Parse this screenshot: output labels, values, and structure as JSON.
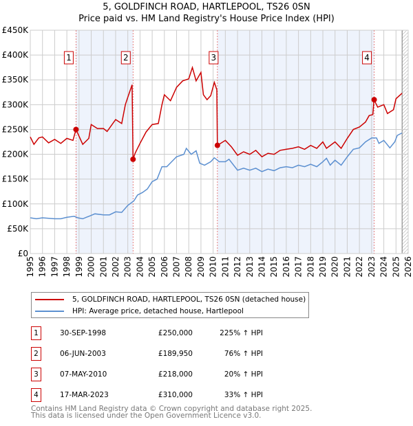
{
  "chart_data": {
    "type": "line",
    "title": "5, GOLDFINCH ROAD, HARTLEPOOL, TS26 0SN",
    "subtitle": "Price paid vs. HM Land Registry's House Price Index (HPI)",
    "xlim": [
      1995,
      2026
    ],
    "ylim": [
      0,
      450000
    ],
    "y_ticks": [
      {
        "v": 0,
        "l": "£0"
      },
      {
        "v": 50000,
        "l": "£50K"
      },
      {
        "v": 100000,
        "l": "£100K"
      },
      {
        "v": 150000,
        "l": "£150K"
      },
      {
        "v": 200000,
        "l": "£200K"
      },
      {
        "v": 250000,
        "l": "£250K"
      },
      {
        "v": 300000,
        "l": "£300K"
      },
      {
        "v": 350000,
        "l": "£350K"
      },
      {
        "v": 400000,
        "l": "£400K"
      },
      {
        "v": 450000,
        "l": "£450K"
      }
    ],
    "x_ticks": [
      "1995",
      "1996",
      "1997",
      "1998",
      "1999",
      "2000",
      "2001",
      "2002",
      "2003",
      "2004",
      "2005",
      "2006",
      "2007",
      "2008",
      "2009",
      "2010",
      "2011",
      "2012",
      "2013",
      "2014",
      "2015",
      "2016",
      "2017",
      "2018",
      "2019",
      "2020",
      "2021",
      "2022",
      "2023",
      "2024",
      "2025",
      "2026"
    ],
    "grid": true,
    "series": [
      {
        "name": "5, GOLDFINCH ROAD, HARTLEPOOL, TS26 0SN (detached house)",
        "color": "#cc0000",
        "points": [
          [
            1995,
            235000
          ],
          [
            1995.3,
            220000
          ],
          [
            1995.7,
            233000
          ],
          [
            1996,
            235000
          ],
          [
            1996.5,
            223000
          ],
          [
            1997,
            230000
          ],
          [
            1997.5,
            222000
          ],
          [
            1998,
            232000
          ],
          [
            1998.5,
            228000
          ],
          [
            1998.75,
            250000
          ],
          [
            1999.3,
            220000
          ],
          [
            1999.8,
            232000
          ],
          [
            2000,
            260000
          ],
          [
            2000.5,
            252000
          ],
          [
            2001,
            252000
          ],
          [
            2001.3,
            246000
          ],
          [
            2002,
            270000
          ],
          [
            2002.5,
            262000
          ],
          [
            2002.8,
            300000
          ],
          [
            2003,
            315000
          ],
          [
            2003.35,
            340000
          ],
          [
            2003.43,
            189950
          ],
          [
            2003.6,
            202000
          ],
          [
            2004,
            222000
          ],
          [
            2004.5,
            245000
          ],
          [
            2005,
            260000
          ],
          [
            2005.5,
            262000
          ],
          [
            2005.8,
            300000
          ],
          [
            2006,
            320000
          ],
          [
            2006.5,
            308000
          ],
          [
            2007,
            335000
          ],
          [
            2007.5,
            348000
          ],
          [
            2008,
            352000
          ],
          [
            2008.3,
            375000
          ],
          [
            2008.6,
            348000
          ],
          [
            2009,
            365000
          ],
          [
            2009.2,
            320000
          ],
          [
            2009.5,
            310000
          ],
          [
            2009.8,
            318000
          ],
          [
            2010.1,
            345000
          ],
          [
            2010.3,
            330000
          ],
          [
            2010.35,
            218000
          ],
          [
            2011,
            228000
          ],
          [
            2011.5,
            215000
          ],
          [
            2012,
            198000
          ],
          [
            2012.5,
            205000
          ],
          [
            2013,
            200000
          ],
          [
            2013.5,
            208000
          ],
          [
            2014,
            195000
          ],
          [
            2014.5,
            202000
          ],
          [
            2015,
            200000
          ],
          [
            2015.5,
            208000
          ],
          [
            2016,
            210000
          ],
          [
            2016.5,
            212000
          ],
          [
            2017,
            215000
          ],
          [
            2017.5,
            210000
          ],
          [
            2018,
            218000
          ],
          [
            2018.5,
            212000
          ],
          [
            2019,
            225000
          ],
          [
            2019.3,
            212000
          ],
          [
            2020,
            225000
          ],
          [
            2020.5,
            212000
          ],
          [
            2021,
            232000
          ],
          [
            2021.5,
            250000
          ],
          [
            2022,
            255000
          ],
          [
            2022.5,
            265000
          ],
          [
            2022.8,
            278000
          ],
          [
            2023.1,
            280000
          ],
          [
            2023.2,
            310000
          ],
          [
            2023.5,
            295000
          ],
          [
            2024,
            300000
          ],
          [
            2024.3,
            282000
          ],
          [
            2024.8,
            290000
          ],
          [
            2025,
            312000
          ],
          [
            2025.5,
            323000
          ]
        ]
      },
      {
        "name": "HPI: Average price, detached house, Hartlepool",
        "color": "#5b8fd0",
        "points": [
          [
            1995,
            72000
          ],
          [
            1995.5,
            70000
          ],
          [
            1996,
            72000
          ],
          [
            1997,
            70000
          ],
          [
            1997.5,
            70000
          ],
          [
            1998,
            73000
          ],
          [
            1998.6,
            75000
          ],
          [
            1998.9,
            72000
          ],
          [
            1999.3,
            70000
          ],
          [
            2000,
            77000
          ],
          [
            2000.3,
            80000
          ],
          [
            2001,
            78000
          ],
          [
            2001.5,
            78000
          ],
          [
            2002,
            84000
          ],
          [
            2002.5,
            83000
          ],
          [
            2003,
            97000
          ],
          [
            2003.5,
            106000
          ],
          [
            2003.8,
            118000
          ],
          [
            2004.2,
            123000
          ],
          [
            2004.6,
            130000
          ],
          [
            2005,
            145000
          ],
          [
            2005.4,
            150000
          ],
          [
            2005.8,
            175000
          ],
          [
            2006.2,
            175000
          ],
          [
            2006.6,
            185000
          ],
          [
            2007,
            195000
          ],
          [
            2007.6,
            200000
          ],
          [
            2007.8,
            212000
          ],
          [
            2008.2,
            200000
          ],
          [
            2008.6,
            207000
          ],
          [
            2008.9,
            182000
          ],
          [
            2009.3,
            178000
          ],
          [
            2009.8,
            185000
          ],
          [
            2010.1,
            193000
          ],
          [
            2010.5,
            185000
          ],
          [
            2011,
            185000
          ],
          [
            2011.3,
            190000
          ],
          [
            2012,
            168000
          ],
          [
            2012.5,
            172000
          ],
          [
            2013,
            168000
          ],
          [
            2013.5,
            172000
          ],
          [
            2014,
            165000
          ],
          [
            2014.5,
            170000
          ],
          [
            2015,
            167000
          ],
          [
            2015.5,
            173000
          ],
          [
            2016,
            175000
          ],
          [
            2016.5,
            173000
          ],
          [
            2017,
            178000
          ],
          [
            2017.5,
            175000
          ],
          [
            2018,
            180000
          ],
          [
            2018.5,
            175000
          ],
          [
            2019,
            185000
          ],
          [
            2019.3,
            192000
          ],
          [
            2019.6,
            178000
          ],
          [
            2020,
            188000
          ],
          [
            2020.5,
            178000
          ],
          [
            2021,
            195000
          ],
          [
            2021.5,
            210000
          ],
          [
            2022,
            213000
          ],
          [
            2022.5,
            225000
          ],
          [
            2023,
            233000
          ],
          [
            2023.4,
            233000
          ],
          [
            2023.6,
            222000
          ],
          [
            2024,
            228000
          ],
          [
            2024.5,
            213000
          ],
          [
            2024.9,
            225000
          ],
          [
            2025.1,
            238000
          ],
          [
            2025.5,
            243000
          ]
        ]
      }
    ],
    "sales": [
      {
        "n": "1",
        "x": 1998.75,
        "y": 250000
      },
      {
        "n": "2",
        "x": 2003.43,
        "y": 189950
      },
      {
        "n": "3",
        "x": 2010.35,
        "y": 218000
      },
      {
        "n": "4",
        "x": 2023.21,
        "y": 310000
      }
    ],
    "shaded": [
      [
        1998.75,
        2003.43
      ],
      [
        2010.35,
        2023.21
      ]
    ],
    "forecast_from": 2025.5,
    "legend_placement": "below"
  },
  "table": [
    {
      "n": "1",
      "date": "30-SEP-1998",
      "price": "£250,000",
      "hpi": "225% ↑ HPI"
    },
    {
      "n": "2",
      "date": "06-JUN-2003",
      "price": "£189,950",
      "hpi": "76% ↑ HPI"
    },
    {
      "n": "3",
      "date": "07-MAY-2010",
      "price": "£218,000",
      "hpi": "20% ↑ HPI"
    },
    {
      "n": "4",
      "date": "17-MAR-2023",
      "price": "£310,000",
      "hpi": "33% ↑ HPI"
    }
  ],
  "footer": [
    "Contains HM Land Registry data © Crown copyright and database right 2025.",
    "This data is licensed under the Open Government Licence v3.0."
  ]
}
